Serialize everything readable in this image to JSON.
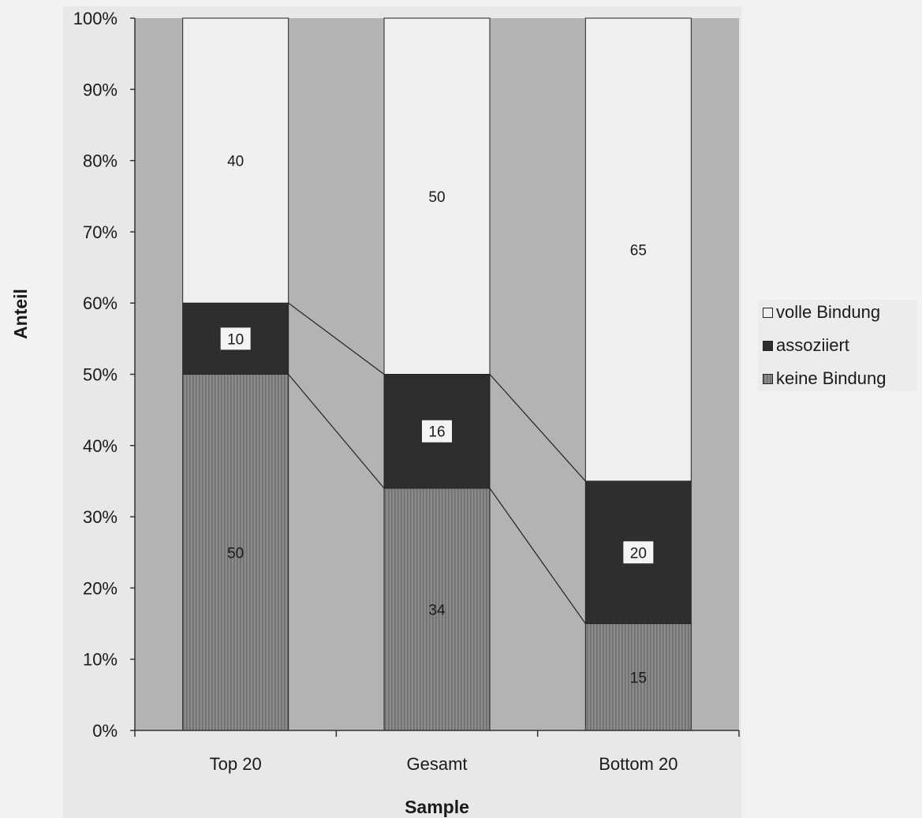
{
  "chart_data": {
    "type": "bar",
    "stacked": true,
    "percent": true,
    "categories": [
      "Top 20",
      "Gesamt",
      "Bottom 20"
    ],
    "series": [
      {
        "name": "keine Bindung",
        "values": [
          50,
          34,
          15
        ],
        "color": "#8e8e8e",
        "pattern": "vertical-stripes"
      },
      {
        "name": "assoziiert",
        "values": [
          10,
          16,
          20
        ],
        "color": "#2e2e2e"
      },
      {
        "name": "volle Bindung",
        "values": [
          40,
          50,
          65
        ],
        "color": "#f0f0f0"
      }
    ],
    "xlabel": "Sample",
    "ylabel": "Anteil",
    "ylim": [
      0,
      100
    ],
    "yticks": [
      "0%",
      "10%",
      "20%",
      "30%",
      "40%",
      "50%",
      "60%",
      "70%",
      "80%",
      "90%",
      "100%"
    ],
    "series_lines": true,
    "grid": false,
    "plot_background": "#b3b3b3",
    "legend_position": "right",
    "legend_order": [
      "volle Bindung",
      "assoziiert",
      "keine Bindung"
    ]
  }
}
